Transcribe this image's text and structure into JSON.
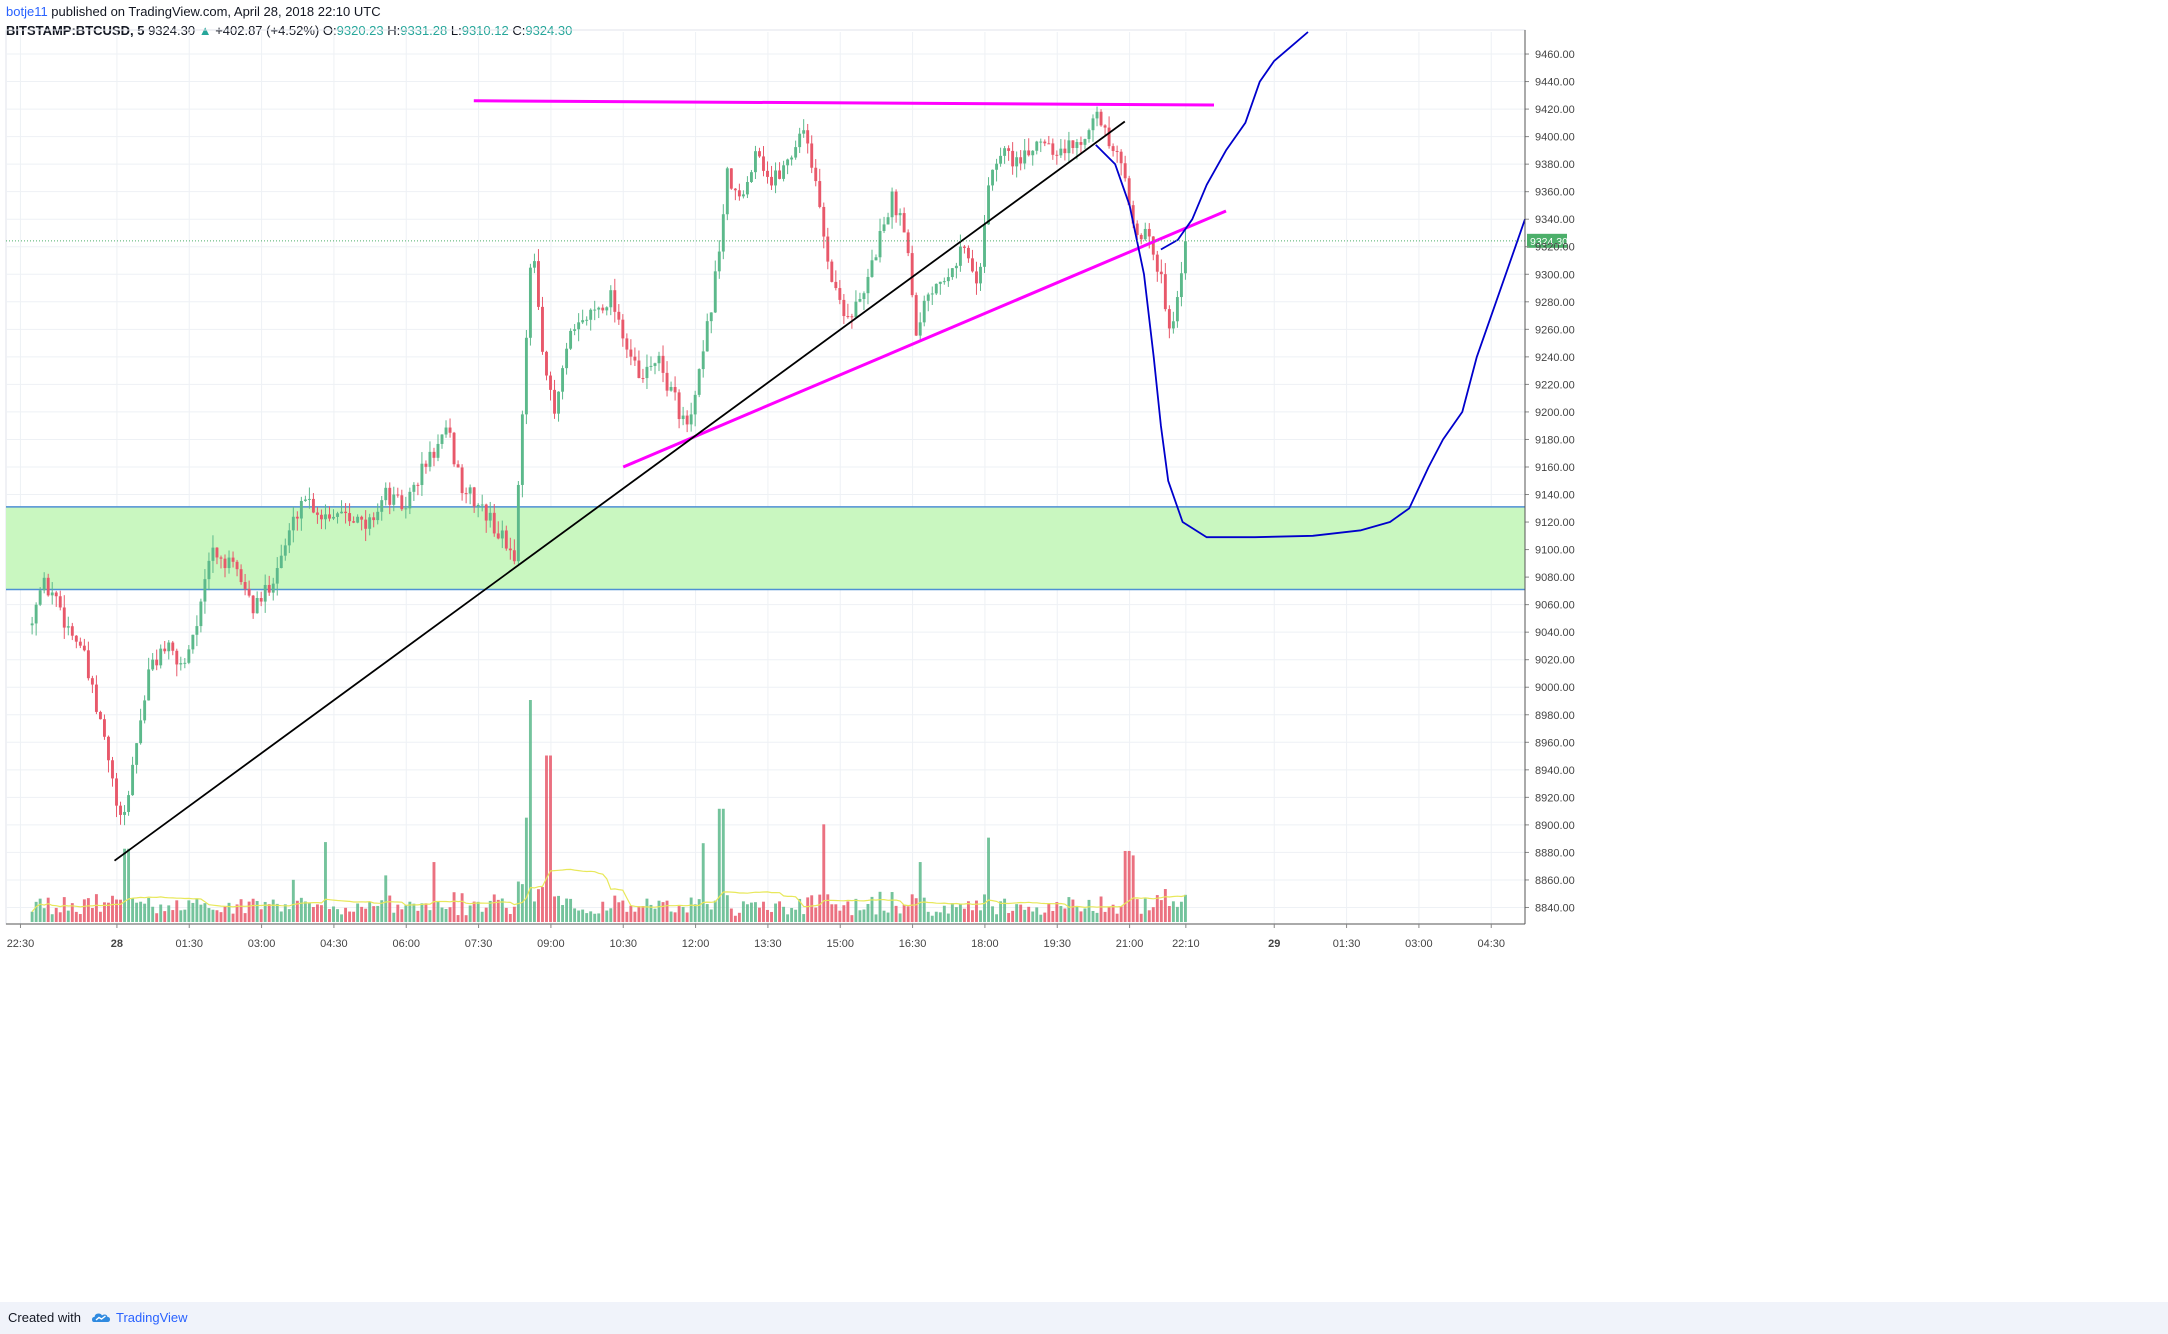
{
  "header": {
    "author": "botje11",
    "published_text": " published on TradingView.com, April 28, 2018 22:10 UTC",
    "symbol": "BITSTAMP:BTCUSD, 5",
    "last": "9324.30",
    "up_arrow": "▲",
    "change": "+402.87 (+4.52%)",
    "o_label": "O:",
    "o_value": "9320.23",
    "h_label": "H:",
    "h_value": "9331.28",
    "l_label": "L:",
    "l_value": "9310.12",
    "c_label": "C:",
    "c_value": "9324.30"
  },
  "footer": {
    "created_with": "Created with",
    "brand": "TradingView",
    "logo_icon": "tradingview-cloud-icon"
  },
  "colors": {
    "up": "#5cb98b",
    "down": "#e8586a",
    "zone_fill": "#c9f7c0",
    "zone_border": "#4f8fd4",
    "magenta": "#ff00ff",
    "projection": "#0000cc",
    "trendline": "#000000",
    "volume_ma": "#e8e85a",
    "last_price_bg": "#4caf6a"
  },
  "chart_data": {
    "type": "candlestick",
    "symbol": "BITSTAMP:BTCUSD",
    "interval": "5",
    "ylim": [
      8828,
      9476
    ],
    "y_ticks": [
      "9460.00",
      "9440.00",
      "9420.00",
      "9400.00",
      "9380.00",
      "9360.00",
      "9340.00",
      "9320.00",
      "9300.00",
      "9280.00",
      "9260.00",
      "9240.00",
      "9220.00",
      "9200.00",
      "9180.00",
      "9160.00",
      "9140.00",
      "9120.00",
      "9100.00",
      "9080.00",
      "9060.00",
      "9040.00",
      "9020.00",
      "9000.00",
      "8980.00",
      "8960.00",
      "8940.00",
      "8920.00",
      "8900.00",
      "8880.00",
      "8860.00",
      "8840.00"
    ],
    "x_ticks": [
      {
        "label": "22:30",
        "t": -2
      },
      {
        "label": "28",
        "t": 0
      },
      {
        "label": "01:30",
        "t": 1.5
      },
      {
        "label": "03:00",
        "t": 3
      },
      {
        "label": "04:30",
        "t": 4.5
      },
      {
        "label": "06:00",
        "t": 6
      },
      {
        "label": "07:30",
        "t": 7.5
      },
      {
        "label": "09:00",
        "t": 9
      },
      {
        "label": "10:30",
        "t": 10.5
      },
      {
        "label": "12:00",
        "t": 12
      },
      {
        "label": "13:30",
        "t": 13.5
      },
      {
        "label": "15:00",
        "t": 15
      },
      {
        "label": "16:30",
        "t": 16.5
      },
      {
        "label": "18:00",
        "t": 18
      },
      {
        "label": "19:30",
        "t": 19.5
      },
      {
        "label": "21:00",
        "t": 21
      },
      {
        "label": "22:10",
        "t": 22.1667
      },
      {
        "label": "29",
        "t": 24
      },
      {
        "label": "01:30",
        "t": 25.5
      },
      {
        "label": "03:00",
        "t": 27
      },
      {
        "label": "04:30",
        "t": 28.5
      }
    ],
    "time_range_hours": [
      -2.3,
      29.2
    ],
    "last_price_label": "9324.30",
    "price_path": [
      {
        "t": -1.8,
        "p": 9045
      },
      {
        "t": -1.5,
        "p": 9075
      },
      {
        "t": -1.2,
        "p": 9065
      },
      {
        "t": -1.0,
        "p": 9045
      },
      {
        "t": -0.7,
        "p": 9030
      },
      {
        "t": -0.4,
        "p": 8985
      },
      {
        "t": -0.2,
        "p": 8960
      },
      {
        "t": 0.0,
        "p": 8920
      },
      {
        "t": 0.15,
        "p": 8895
      },
      {
        "t": 0.4,
        "p": 8950
      },
      {
        "t": 0.7,
        "p": 9010
      },
      {
        "t": 1.0,
        "p": 9030
      },
      {
        "t": 1.4,
        "p": 9015
      },
      {
        "t": 1.8,
        "p": 9060
      },
      {
        "t": 2.0,
        "p": 9100
      },
      {
        "t": 2.3,
        "p": 9090
      },
      {
        "t": 2.6,
        "p": 9080
      },
      {
        "t": 2.9,
        "p": 9055
      },
      {
        "t": 3.2,
        "p": 9075
      },
      {
        "t": 3.5,
        "p": 9100
      },
      {
        "t": 3.9,
        "p": 9140
      },
      {
        "t": 4.3,
        "p": 9125
      },
      {
        "t": 4.8,
        "p": 9130
      },
      {
        "t": 5.2,
        "p": 9115
      },
      {
        "t": 5.6,
        "p": 9140
      },
      {
        "t": 6.0,
        "p": 9130
      },
      {
        "t": 6.4,
        "p": 9160
      },
      {
        "t": 6.9,
        "p": 9185
      },
      {
        "t": 7.2,
        "p": 9145
      },
      {
        "t": 7.6,
        "p": 9130
      },
      {
        "t": 8.0,
        "p": 9110
      },
      {
        "t": 8.3,
        "p": 9095
      },
      {
        "t": 8.5,
        "p": 9240
      },
      {
        "t": 8.65,
        "p": 9320
      },
      {
        "t": 8.9,
        "p": 9240
      },
      {
        "t": 9.1,
        "p": 9195
      },
      {
        "t": 9.4,
        "p": 9250
      },
      {
        "t": 9.8,
        "p": 9270
      },
      {
        "t": 10.3,
        "p": 9285
      },
      {
        "t": 10.6,
        "p": 9250
      },
      {
        "t": 10.9,
        "p": 9220
      },
      {
        "t": 11.2,
        "p": 9240
      },
      {
        "t": 11.6,
        "p": 9210
      },
      {
        "t": 11.9,
        "p": 9185
      },
      {
        "t": 12.2,
        "p": 9240
      },
      {
        "t": 12.5,
        "p": 9310
      },
      {
        "t": 12.7,
        "p": 9370
      },
      {
        "t": 13.0,
        "p": 9350
      },
      {
        "t": 13.3,
        "p": 9395
      },
      {
        "t": 13.6,
        "p": 9365
      },
      {
        "t": 14.0,
        "p": 9385
      },
      {
        "t": 14.3,
        "p": 9410
      },
      {
        "t": 14.6,
        "p": 9350
      },
      {
        "t": 14.9,
        "p": 9290
      },
      {
        "t": 15.2,
        "p": 9270
      },
      {
        "t": 15.5,
        "p": 9280
      },
      {
        "t": 15.8,
        "p": 9320
      },
      {
        "t": 16.1,
        "p": 9355
      },
      {
        "t": 16.4,
        "p": 9335
      },
      {
        "t": 16.6,
        "p": 9260
      },
      {
        "t": 16.9,
        "p": 9290
      },
      {
        "t": 17.3,
        "p": 9305
      },
      {
        "t": 17.6,
        "p": 9320
      },
      {
        "t": 17.9,
        "p": 9290
      },
      {
        "t": 18.1,
        "p": 9365
      },
      {
        "t": 18.4,
        "p": 9390
      },
      {
        "t": 18.8,
        "p": 9380
      },
      {
        "t": 19.2,
        "p": 9400
      },
      {
        "t": 19.6,
        "p": 9390
      },
      {
        "t": 20.0,
        "p": 9395
      },
      {
        "t": 20.3,
        "p": 9420
      },
      {
        "t": 20.6,
        "p": 9395
      },
      {
        "t": 20.9,
        "p": 9375
      },
      {
        "t": 21.1,
        "p": 9340
      },
      {
        "t": 21.3,
        "p": 9330
      },
      {
        "t": 21.5,
        "p": 9320
      },
      {
        "t": 21.7,
        "p": 9295
      },
      {
        "t": 21.9,
        "p": 9260
      },
      {
        "t": 22.05,
        "p": 9285
      },
      {
        "t": 22.1667,
        "p": 9324
      }
    ],
    "volume": {
      "scale_max": 1000,
      "spikes": [
        {
          "t": 0.1,
          "v": 370
        },
        {
          "t": 0.15,
          "v": 330
        },
        {
          "t": 3.6,
          "v": 190
        },
        {
          "t": 4.3,
          "v": 360
        },
        {
          "t": 5.5,
          "v": 210
        },
        {
          "t": 6.5,
          "v": 270
        },
        {
          "t": 8.45,
          "v": 470
        },
        {
          "t": 8.55,
          "v": 1000
        },
        {
          "t": 8.9,
          "v": 750
        },
        {
          "t": 12.15,
          "v": 355
        },
        {
          "t": 12.5,
          "v": 510
        },
        {
          "t": 14.6,
          "v": 440
        },
        {
          "t": 16.65,
          "v": 270
        },
        {
          "t": 18.05,
          "v": 380
        },
        {
          "t": 20.9,
          "v": 320
        },
        {
          "t": 21.0,
          "v": 300
        }
      ]
    },
    "drawings": [
      {
        "name": "resistance-line",
        "color": "#ff00ff",
        "points": [
          [
            7.4,
            9426
          ],
          [
            22.75,
            9423
          ]
        ]
      },
      {
        "name": "rising-support-line",
        "color": "#ff00ff",
        "points": [
          [
            10.5,
            9160
          ],
          [
            23.0,
            9346
          ]
        ]
      },
      {
        "name": "trendline-black",
        "color": "#000000",
        "points": [
          [
            -0.05,
            8874
          ],
          [
            20.9,
            9411
          ]
        ]
      },
      {
        "name": "demand-zone",
        "color": "#c9f7c0",
        "y_range": [
          9071,
          9131
        ]
      },
      {
        "name": "projection-curve-lower",
        "color": "#0000cc",
        "points": [
          [
            20.3,
            9394
          ],
          [
            20.7,
            9380
          ],
          [
            21.0,
            9350
          ],
          [
            21.3,
            9300
          ],
          [
            21.5,
            9240
          ],
          [
            21.65,
            9190
          ],
          [
            21.8,
            9150
          ],
          [
            22.1,
            9120
          ],
          [
            22.6,
            9109
          ],
          [
            23.6,
            9109
          ],
          [
            24.8,
            9110
          ],
          [
            25.8,
            9114
          ],
          [
            26.4,
            9120
          ],
          [
            26.8,
            9130
          ],
          [
            27.2,
            9160
          ],
          [
            27.5,
            9180
          ],
          [
            27.9,
            9200
          ],
          [
            28.2,
            9240
          ],
          [
            28.6,
            9280
          ],
          [
            29.0,
            9320
          ],
          [
            29.2,
            9340
          ]
        ]
      },
      {
        "name": "projection-curve-upper",
        "color": "#0000cc",
        "points": [
          [
            21.65,
            9318
          ],
          [
            22.0,
            9325
          ],
          [
            22.3,
            9340
          ],
          [
            22.6,
            9365
          ],
          [
            23.0,
            9390
          ],
          [
            23.4,
            9410
          ],
          [
            23.7,
            9440
          ],
          [
            24.0,
            9455
          ],
          [
            24.4,
            9467
          ],
          [
            24.7,
            9476
          ]
        ]
      }
    ]
  }
}
